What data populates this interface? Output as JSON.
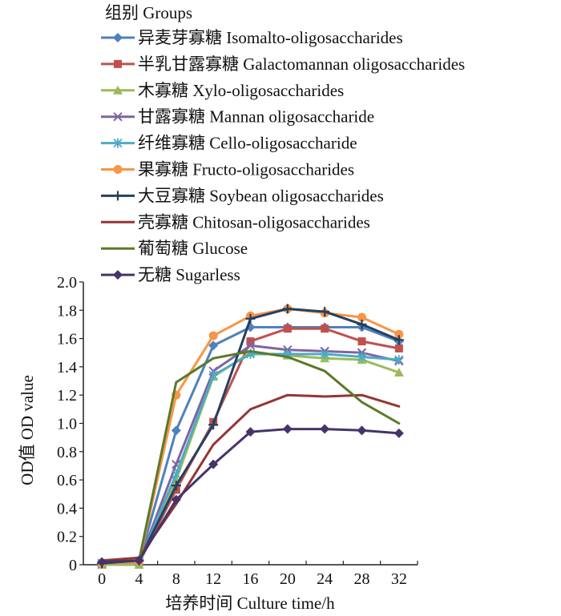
{
  "chart_data": {
    "type": "line",
    "x": [
      0,
      4,
      8,
      12,
      16,
      20,
      24,
      28,
      32
    ],
    "xlabel": "培养时间 Culture time/h",
    "ylabel": "OD值 OD value",
    "ylim": [
      0,
      2.0
    ],
    "yticks": [
      "0",
      "0.2",
      "0.4",
      "0.6",
      "0.8",
      "1.0",
      "1.2",
      "1.4",
      "1.6",
      "1.8",
      "2.0"
    ],
    "grid": false,
    "legend": {
      "title": "组别 Groups",
      "position": "top-left"
    },
    "series": [
      {
        "name": "异麦芽寡糖 Isomalto-oligosaccharides",
        "color": "#4f81bd",
        "marker": "diamond",
        "values": [
          0.01,
          0.02,
          0.95,
          1.55,
          1.68,
          1.68,
          1.68,
          1.68,
          1.58
        ]
      },
      {
        "name": "半乳甘露寡糖 Galactomannan oligosaccharides",
        "color": "#c0504d",
        "marker": "square",
        "values": [
          0.01,
          0.02,
          0.53,
          1.01,
          1.58,
          1.67,
          1.67,
          1.58,
          1.53
        ]
      },
      {
        "name": "木寡糖 Xylo-oligosaccharides",
        "color": "#9bbb59",
        "marker": "triangle",
        "values": [
          0.0,
          0.0,
          0.6,
          1.33,
          1.5,
          1.48,
          1.46,
          1.45,
          1.36
        ]
      },
      {
        "name": "甘露寡糖 Mannan oligosaccharide",
        "color": "#8064a2",
        "marker": "x",
        "values": [
          0.01,
          0.02,
          0.71,
          1.37,
          1.55,
          1.52,
          1.51,
          1.5,
          1.44
        ]
      },
      {
        "name": "纤维寡糖 Cello-oligosaccharide",
        "color": "#4bacc6",
        "marker": "asterisk",
        "values": [
          0.01,
          0.02,
          0.64,
          1.34,
          1.49,
          1.49,
          1.49,
          1.47,
          1.45
        ]
      },
      {
        "name": "果寡糖 Fructo-oligosaccharides",
        "color": "#f79646",
        "marker": "circle",
        "values": [
          0.01,
          0.02,
          1.2,
          1.62,
          1.76,
          1.81,
          1.78,
          1.75,
          1.63
        ]
      },
      {
        "name": "大豆寡糖 Soybean oligosaccharides",
        "color": "#254061",
        "marker": "plus",
        "values": [
          0.01,
          0.03,
          0.56,
          0.99,
          1.74,
          1.81,
          1.79,
          1.7,
          1.59
        ]
      },
      {
        "name": "壳寡糖 Chitosan-oligosaccharides",
        "color": "#943634",
        "marker": "none",
        "values": [
          0.03,
          0.05,
          0.43,
          0.85,
          1.1,
          1.2,
          1.19,
          1.2,
          1.12
        ]
      },
      {
        "name": "葡萄糖 Glucose",
        "color": "#5a7a2a",
        "marker": "none",
        "values": [
          0.02,
          0.03,
          1.29,
          1.46,
          1.51,
          1.47,
          1.37,
          1.15,
          1.0
        ]
      },
      {
        "name": "无糖 Sugarless",
        "color": "#45346a",
        "marker": "diamond",
        "values": [
          0.02,
          0.03,
          0.46,
          0.71,
          0.94,
          0.96,
          0.96,
          0.95,
          0.93
        ]
      }
    ]
  }
}
